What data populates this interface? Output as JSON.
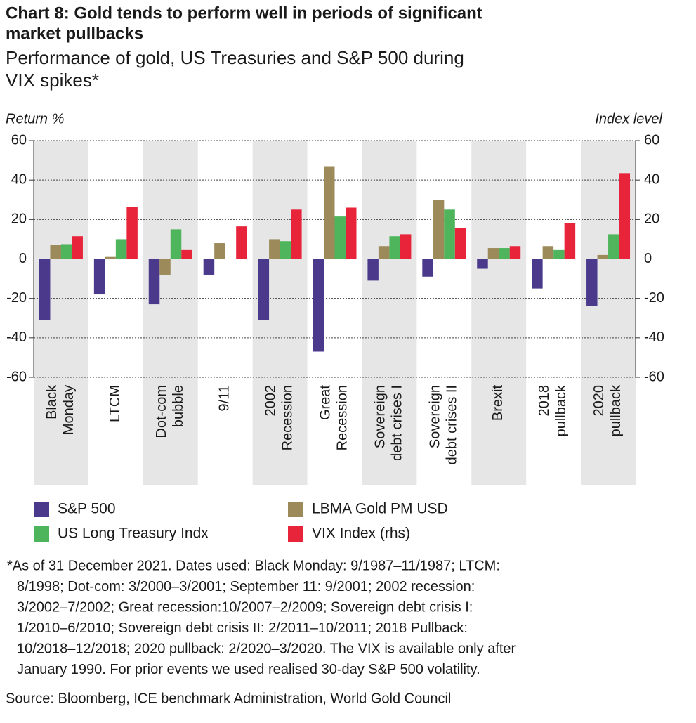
{
  "chart_data": {
    "type": "bar",
    "title_lines": [
      "Chart 8: Gold tends to perform well in periods of significant",
      "market pullbacks"
    ],
    "subtitle_lines": [
      "Performance of gold, US Treasuries and S&P 500 during",
      "VIX spikes*"
    ],
    "y_label": "Return %",
    "y2_label": "Index level",
    "categories": [
      [
        "Black",
        "Monday"
      ],
      [
        "LTCM"
      ],
      [
        "Dot-com",
        "bubble"
      ],
      [
        "9/11"
      ],
      [
        "2002",
        "Recession"
      ],
      [
        "Great",
        "Recession"
      ],
      [
        "Sovereign",
        "debt crises I"
      ],
      [
        "Sovereign",
        "debt crises II"
      ],
      [
        "Brexit"
      ],
      [
        "2018",
        "pullback"
      ],
      [
        "2020",
        "pullback"
      ]
    ],
    "series": [
      {
        "name": "S&P 500",
        "color": "#4b3a8c",
        "values": [
          -31,
          -18,
          -23,
          -8,
          -31,
          -47,
          -11,
          -9,
          -5,
          -15,
          -24
        ]
      },
      {
        "name": "LBMA Gold PM USD",
        "color": "#9c8a5a",
        "values": [
          7,
          1,
          -8,
          8,
          10,
          47,
          6.5,
          30,
          5.5,
          6.5,
          2
        ]
      },
      {
        "name": "US Long Treasury Indx",
        "color": "#4fb55d",
        "values": [
          7.5,
          10,
          15,
          0,
          9,
          21.5,
          11.5,
          25,
          5.5,
          4.5,
          12.5
        ]
      },
      {
        "name": "VIX Index (rhs)",
        "color": "#e8243a",
        "axis": "y2",
        "values": [
          11.5,
          26.5,
          4.5,
          16.5,
          25,
          26,
          12.5,
          15.5,
          6.5,
          18,
          43.5
        ]
      }
    ],
    "ylim": [
      -60,
      60
    ],
    "yticks": [
      -60,
      -40,
      -20,
      0,
      20,
      40,
      60
    ],
    "y2lim": [
      -60,
      60
    ],
    "y2ticks": [
      -60,
      -40,
      -20,
      0,
      20,
      40,
      60
    ],
    "grid": true,
    "footnote_lines": [
      "*As of 31 December 2021. Dates used: Black Monday: 9/1987–11/1987; LTCM:",
      "8/1998; Dot-com: 3/2000–3/2001; September 11: 9/2001; 2002 recession:",
      "3/2002–7/2002; Great recession:10/2007–2/2009; Sovereign debt crisis I:",
      "1/2010–6/2010; Sovereign debt crisis II: 2/2011–10/2011; 2018 Pullback:",
      "10/2018–12/2018; 2020 pullback: 2/2020–3/2020. The VIX is available only after",
      "January 1990. For prior events we used realised 30-day S&P 500 volatility."
    ],
    "source": "Source: Bloomberg, ICE benchmark Administration, World Gold Council"
  }
}
